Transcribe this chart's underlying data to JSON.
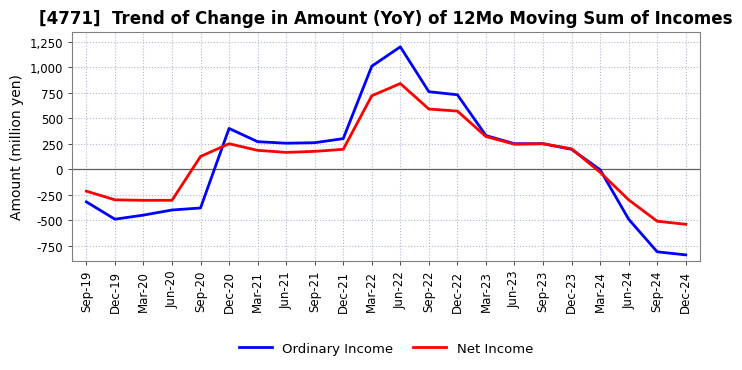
{
  "title": "[4771]  Trend of Change in Amount (YoY) of 12Mo Moving Sum of Incomes",
  "ylabel": "Amount (million yen)",
  "background_color": "#ffffff",
  "plot_bg_color": "#ffffff",
  "grid_color": "#b0b8d0",
  "x_labels": [
    "Sep-19",
    "Dec-19",
    "Mar-20",
    "Jun-20",
    "Sep-20",
    "Dec-20",
    "Mar-21",
    "Jun-21",
    "Sep-21",
    "Dec-21",
    "Mar-22",
    "Jun-22",
    "Sep-22",
    "Dec-22",
    "Mar-23",
    "Jun-23",
    "Sep-23",
    "Dec-23",
    "Mar-24",
    "Jun-24",
    "Sep-24",
    "Dec-24"
  ],
  "ordinary_income": [
    -320,
    -490,
    -450,
    -400,
    -380,
    400,
    270,
    255,
    260,
    300,
    1010,
    1200,
    760,
    730,
    330,
    250,
    250,
    195,
    -5,
    -490,
    -810,
    -840
  ],
  "net_income": [
    -215,
    -300,
    -305,
    -305,
    125,
    250,
    185,
    165,
    175,
    195,
    720,
    840,
    590,
    570,
    320,
    245,
    250,
    200,
    -30,
    -300,
    -510,
    -540
  ],
  "ordinary_color": "#0000ff",
  "net_color": "#ff0000",
  "ylim": [
    -900,
    1350
  ],
  "yticks": [
    -750,
    -500,
    -250,
    0,
    250,
    500,
    750,
    1000,
    1250
  ],
  "legend_ordinary": "Ordinary Income",
  "legend_net": "Net Income",
  "title_fontsize": 12,
  "axis_fontsize": 10,
  "tick_fontsize": 8.5,
  "line_width": 2.0
}
